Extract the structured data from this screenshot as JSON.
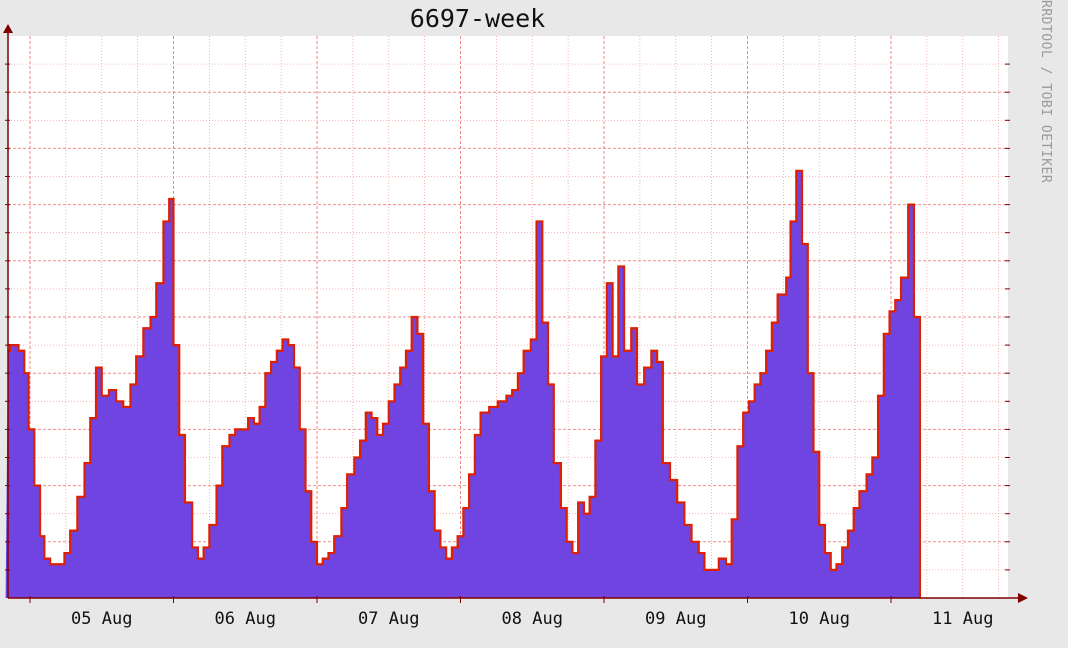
{
  "chart_data": {
    "type": "area",
    "title": "6697-week",
    "xlabel": "",
    "ylabel": "",
    "grid": true,
    "legend": "none",
    "watermark": "RRDTOOL / TOBI OETIKER",
    "x_tick_labels": [
      "05 Aug",
      "06 Aug",
      "07 Aug",
      "08 Aug",
      "09 Aug",
      "10 Aug",
      "11 Aug"
    ],
    "x_range": [
      0,
      7.05
    ],
    "ylim": [
      0,
      100
    ],
    "colors": {
      "area": "#7044e0",
      "line": "#dd2000",
      "grid": "#f08080",
      "background": "#ffffff",
      "canvas": "#e8e8e8",
      "axis": "#800000"
    },
    "series": [
      {
        "points": [
          [
            -0.17,
            44
          ],
          [
            -0.14,
            45
          ],
          [
            -0.08,
            44
          ],
          [
            -0.04,
            40
          ],
          [
            -0.01,
            30
          ],
          [
            0.03,
            20
          ],
          [
            0.07,
            11
          ],
          [
            0.1,
            7
          ],
          [
            0.14,
            6
          ],
          [
            0.2,
            6
          ],
          [
            0.24,
            8
          ],
          [
            0.28,
            12
          ],
          [
            0.33,
            18
          ],
          [
            0.38,
            24
          ],
          [
            0.42,
            32
          ],
          [
            0.46,
            41
          ],
          [
            0.5,
            36
          ],
          [
            0.55,
            37
          ],
          [
            0.6,
            35
          ],
          [
            0.65,
            34
          ],
          [
            0.7,
            38
          ],
          [
            0.74,
            43
          ],
          [
            0.79,
            48
          ],
          [
            0.84,
            50
          ],
          [
            0.88,
            56
          ],
          [
            0.93,
            67
          ],
          [
            0.97,
            71
          ],
          [
            1.0,
            45
          ],
          [
            1.04,
            29
          ],
          [
            1.08,
            17
          ],
          [
            1.13,
            9
          ],
          [
            1.17,
            7
          ],
          [
            1.21,
            9
          ],
          [
            1.25,
            13
          ],
          [
            1.3,
            20
          ],
          [
            1.34,
            27
          ],
          [
            1.39,
            29
          ],
          [
            1.43,
            30
          ],
          [
            1.48,
            30
          ],
          [
            1.52,
            32
          ],
          [
            1.56,
            31
          ],
          [
            1.6,
            34
          ],
          [
            1.64,
            40
          ],
          [
            1.68,
            42
          ],
          [
            1.72,
            44
          ],
          [
            1.76,
            46
          ],
          [
            1.8,
            45
          ],
          [
            1.84,
            41
          ],
          [
            1.88,
            30
          ],
          [
            1.92,
            19
          ],
          [
            1.96,
            10
          ],
          [
            2.0,
            6
          ],
          [
            2.04,
            7
          ],
          [
            2.08,
            8
          ],
          [
            2.12,
            11
          ],
          [
            2.17,
            16
          ],
          [
            2.21,
            22
          ],
          [
            2.26,
            25
          ],
          [
            2.3,
            28
          ],
          [
            2.34,
            33
          ],
          [
            2.38,
            32
          ],
          [
            2.42,
            29
          ],
          [
            2.46,
            31
          ],
          [
            2.5,
            35
          ],
          [
            2.54,
            38
          ],
          [
            2.58,
            41
          ],
          [
            2.62,
            44
          ],
          [
            2.66,
            50
          ],
          [
            2.7,
            47
          ],
          [
            2.74,
            31
          ],
          [
            2.78,
            19
          ],
          [
            2.82,
            12
          ],
          [
            2.86,
            9
          ],
          [
            2.9,
            7
          ],
          [
            2.94,
            9
          ],
          [
            2.98,
            11
          ],
          [
            3.02,
            16
          ],
          [
            3.06,
            22
          ],
          [
            3.1,
            29
          ],
          [
            3.14,
            33
          ],
          [
            3.2,
            34
          ],
          [
            3.26,
            35
          ],
          [
            3.32,
            36
          ],
          [
            3.36,
            37
          ],
          [
            3.4,
            40
          ],
          [
            3.44,
            44
          ],
          [
            3.49,
            46
          ],
          [
            3.53,
            67
          ],
          [
            3.57,
            49
          ],
          [
            3.61,
            38
          ],
          [
            3.65,
            24
          ],
          [
            3.7,
            16
          ],
          [
            3.74,
            10
          ],
          [
            3.78,
            8
          ],
          [
            3.82,
            17
          ],
          [
            3.86,
            15
          ],
          [
            3.9,
            18
          ],
          [
            3.94,
            28
          ],
          [
            3.98,
            43
          ],
          [
            4.02,
            56
          ],
          [
            4.06,
            43
          ],
          [
            4.1,
            59
          ],
          [
            4.14,
            44
          ],
          [
            4.19,
            48
          ],
          [
            4.23,
            38
          ],
          [
            4.28,
            41
          ],
          [
            4.33,
            44
          ],
          [
            4.37,
            42
          ],
          [
            4.41,
            24
          ],
          [
            4.46,
            21
          ],
          [
            4.51,
            17
          ],
          [
            4.56,
            13
          ],
          [
            4.61,
            10
          ],
          [
            4.66,
            8
          ],
          [
            4.7,
            5
          ],
          [
            4.75,
            5
          ],
          [
            4.8,
            7
          ],
          [
            4.85,
            6
          ],
          [
            4.89,
            14
          ],
          [
            4.93,
            27
          ],
          [
            4.97,
            33
          ],
          [
            5.01,
            35
          ],
          [
            5.05,
            38
          ],
          [
            5.09,
            40
          ],
          [
            5.13,
            44
          ],
          [
            5.17,
            49
          ],
          [
            5.21,
            54
          ],
          [
            5.27,
            57
          ],
          [
            5.3,
            67
          ],
          [
            5.34,
            76
          ],
          [
            5.38,
            63
          ],
          [
            5.42,
            40
          ],
          [
            5.46,
            26
          ],
          [
            5.5,
            13
          ],
          [
            5.54,
            8
          ],
          [
            5.58,
            5
          ],
          [
            5.62,
            6
          ],
          [
            5.66,
            9
          ],
          [
            5.7,
            12
          ],
          [
            5.74,
            16
          ],
          [
            5.78,
            19
          ],
          [
            5.83,
            22
          ],
          [
            5.87,
            25
          ],
          [
            5.91,
            36
          ],
          [
            5.95,
            47
          ],
          [
            5.99,
            51
          ],
          [
            6.03,
            53
          ],
          [
            6.07,
            57
          ],
          [
            6.12,
            70
          ],
          [
            6.16,
            50
          ]
        ]
      }
    ]
  }
}
